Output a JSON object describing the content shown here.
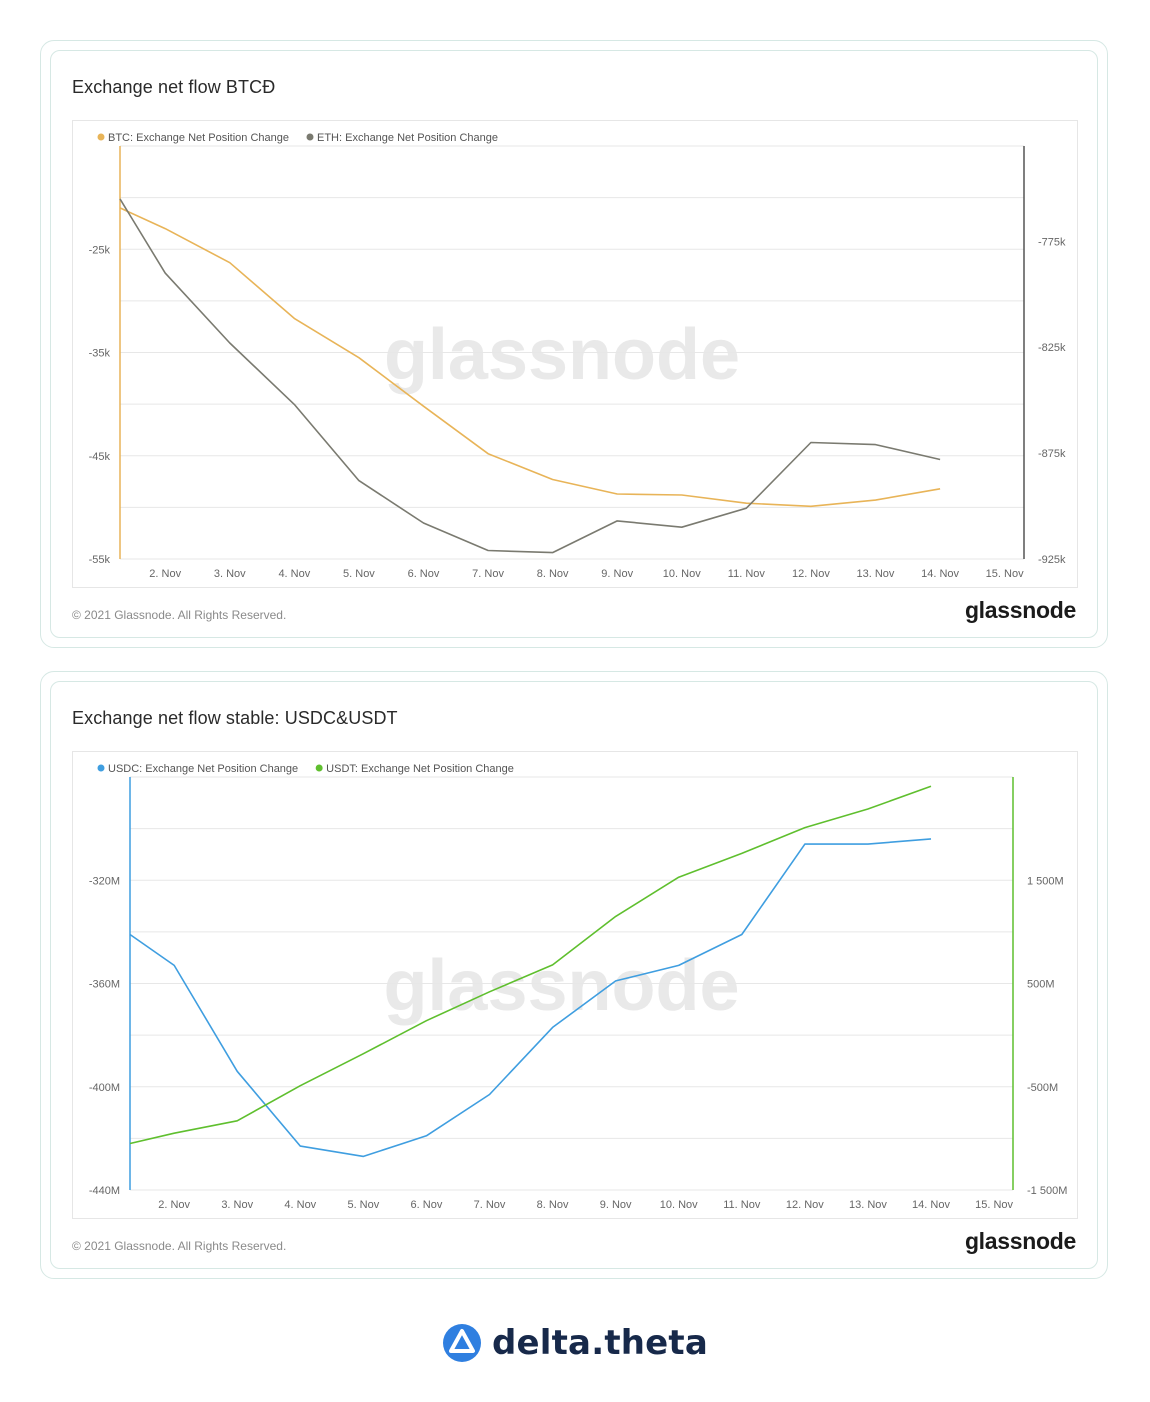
{
  "footer": {
    "brand_name": "delta.theta"
  },
  "chart_data": [
    {
      "type": "line",
      "title": "Exchange net flow BTCĐ",
      "copyright": "© 2021 Glassnode. All Rights Reserved.",
      "brand": "glassnode",
      "watermark": "glassnode",
      "x_ticks": [
        "2. Nov",
        "3. Nov",
        "4. Nov",
        "5. Nov",
        "6. Nov",
        "7. Nov",
        "8. Nov",
        "9. Nov",
        "10. Nov",
        "11. Nov",
        "12. Nov",
        "13. Nov",
        "14. Nov",
        "15. Nov"
      ],
      "x_range": [
        1.3,
        15.3
      ],
      "y_left": {
        "range": [
          -55000,
          -15000
        ],
        "ticks": [
          -25000,
          -35000,
          -45000,
          -55000
        ],
        "tick_labels": [
          "-25k",
          "-35k",
          "-45k",
          "-55k"
        ],
        "color": "#e8b458"
      },
      "y_right": {
        "range": [
          -925000,
          -730000
        ],
        "ticks": [
          -775000,
          -825000,
          -875000,
          -925000
        ],
        "tick_labels": [
          "-775k",
          "-825k",
          "-875k",
          "-925k"
        ],
        "color": "#555555"
      },
      "grid": true,
      "legend_position": "top-left",
      "series": [
        {
          "name": "BTC: Exchange Net Position Change",
          "axis": "left",
          "color": "#e8b458",
          "x": [
            1.3,
            2,
            3,
            4,
            5,
            6,
            7,
            8,
            9,
            10,
            11,
            12,
            13,
            14
          ],
          "y": [
            -21000,
            -23000,
            -26300,
            -31700,
            -35500,
            -40200,
            -44800,
            -47300,
            -48700,
            -48800,
            -49600,
            -49900,
            -49300,
            -48200
          ]
        },
        {
          "name": "ETH: Exchange Net Position Change",
          "axis": "right",
          "color": "#7a7a70",
          "x": [
            1.3,
            2,
            3,
            4,
            5,
            6,
            7,
            8,
            9,
            10,
            11,
            12,
            13,
            14
          ],
          "y": [
            -755000,
            -790000,
            -823000,
            -852000,
            -888000,
            -908000,
            -921000,
            -922000,
            -907000,
            -910000,
            -901000,
            -870000,
            -871000,
            -878000
          ]
        }
      ]
    },
    {
      "type": "line",
      "title": "Exchange net flow stable: USDC&USDT",
      "copyright": "© 2021 Glassnode. All Rights Reserved.",
      "brand": "glassnode",
      "watermark": "glassnode",
      "x_ticks": [
        "2. Nov",
        "3. Nov",
        "4. Nov",
        "5. Nov",
        "6. Nov",
        "7. Nov",
        "8. Nov",
        "9. Nov",
        "10. Nov",
        "11. Nov",
        "12. Nov",
        "13. Nov",
        "14. Nov",
        "15. Nov"
      ],
      "x_range": [
        1.3,
        15.3
      ],
      "y_left": {
        "range": [
          -440000000,
          -280000000
        ],
        "ticks": [
          -320000000,
          -360000000,
          -400000000,
          -440000000
        ],
        "tick_labels": [
          "-320M",
          "-360M",
          "-400M",
          "-440M"
        ],
        "color": "#3f9ee0"
      },
      "y_right": {
        "range": [
          -1500000000,
          2500000000
        ],
        "ticks": [
          1500000000,
          500000000,
          -500000000,
          -1500000000
        ],
        "tick_labels": [
          "1 500M",
          "500M",
          "-500M",
          "-1 500M"
        ],
        "color": "#5fbf2e"
      },
      "grid": true,
      "legend_position": "top-left",
      "series": [
        {
          "name": "USDC: Exchange Net Position Change",
          "axis": "left",
          "color": "#3f9ee0",
          "x": [
            1.3,
            2,
            3,
            4,
            5,
            6,
            7,
            8,
            9,
            10,
            11,
            12,
            13,
            14
          ],
          "y": [
            -341000,
            -353000,
            -394000,
            -423000,
            -427000,
            -419000,
            -403000,
            -377000,
            -359000,
            -353000,
            -341000,
            -306000,
            -306000,
            -304000
          ]
        },
        {
          "name": "USDT: Exchange Net Position Change",
          "axis": "right",
          "color": "#5fbf2e",
          "x": [
            1.3,
            2,
            3,
            4,
            5,
            6,
            7,
            8,
            9,
            10,
            11,
            12,
            13,
            14
          ],
          "y": [
            -1050,
            -950,
            -830,
            -490,
            -180,
            140,
            420,
            680,
            1150,
            1530,
            1760,
            2010,
            2190,
            2410
          ]
        }
      ]
    }
  ]
}
